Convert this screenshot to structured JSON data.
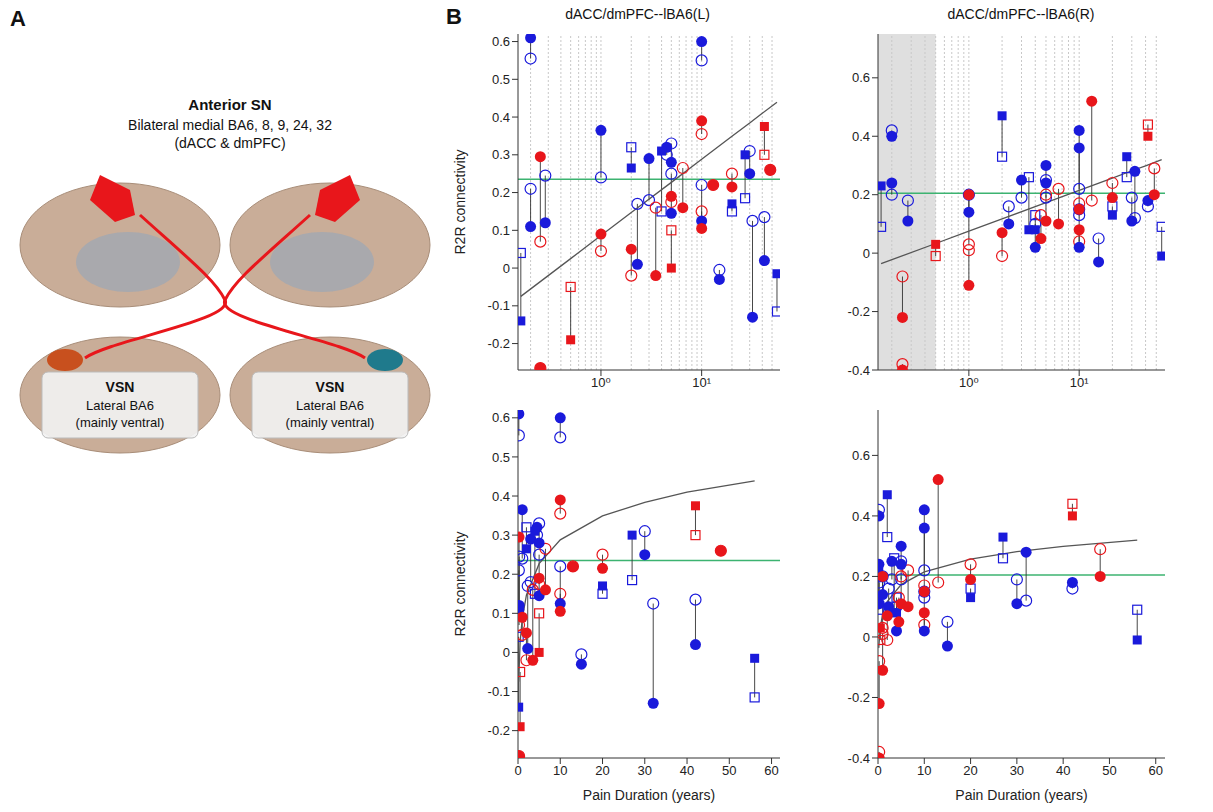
{
  "panel_labels": [
    "A",
    "B"
  ],
  "diagram": {
    "title": "Anterior SN",
    "subtitle": "Bilateral medial BA6, 8, 9, 24, 32",
    "subtitle2": "(dACC & dmPFC)",
    "boxes": [
      {
        "title": "VSN",
        "line1": "Lateral BA6",
        "line2": "(mainly ventral)",
        "color": "#c8501e"
      },
      {
        "title": "VSN",
        "line1": "Lateral BA6",
        "line2": "(mainly ventral)",
        "color": "#1f7a8c"
      }
    ]
  },
  "chart_data": [
    {
      "type": "scatter",
      "title": "dACC/dmPFC--lBA6(L)",
      "log": "x",
      "xlim": [
        0.15,
        60
      ],
      "xticks": [
        {
          "value": 1,
          "label": "10⁰"
        },
        {
          "value": 10,
          "label": "10¹"
        }
      ],
      "minor_xticks": [
        0.2,
        0.3,
        0.4,
        0.5,
        0.6,
        0.7,
        0.8,
        0.9,
        2,
        3,
        4,
        5,
        6,
        7,
        8,
        9,
        20,
        30,
        40,
        50
      ],
      "ylim": [
        -0.27,
        0.62
      ],
      "yticks": [
        -0.2,
        -0.1,
        0,
        0.1,
        0.2,
        0.3,
        0.4,
        0.5,
        0.6
      ],
      "grid": "x",
      "y_label": "R2R connectivity",
      "reference_value": 0.235,
      "reference_color": "#3cb371",
      "fit": {
        "color": "#555555",
        "x": [
          0.16,
          0.5,
          1,
          2,
          5,
          10,
          20,
          30,
          40,
          56
        ],
        "values": [
          -0.075,
          0.025,
          0.086,
          0.147,
          0.227,
          0.288,
          0.349,
          0.384,
          0.41,
          0.439
        ]
      },
      "series": [
        {
          "color": "#1a1adb",
          "marker": "circle",
          "x": [
            0.2,
            0.2,
            0.28,
            1,
            2.3,
            3,
            4.5,
            5,
            5,
            10,
            10,
            15,
            30,
            32,
            42
          ],
          "values": [
            0.61,
            0.11,
            0.12,
            0.365,
            0.01,
            0.29,
            0.32,
            0.28,
            0.145,
            0.6,
            0.125,
            -0.03,
            0.25,
            -0.13,
            0.02
          ],
          "values_open": [
            0.555,
            0.21,
            0.245,
            0.24,
            0.17,
            0.18,
            0.3,
            0.33,
            0.25,
            0.55,
            0.22,
            -0.005,
            0.31,
            0.125,
            0.135
          ]
        },
        {
          "color": "#1a1adb",
          "marker": "square",
          "x": [
            0.16,
            2,
            4,
            20,
            27,
            56
          ],
          "values": [
            -0.14,
            0.265,
            0.31,
            0.17,
            0.3,
            -0.015
          ],
          "values_open": [
            0.04,
            0.32,
            0.15,
            0.15,
            0.185,
            -0.115
          ]
        },
        {
          "color": "#e8161b",
          "marker": "circle",
          "x": [
            0.25,
            0.25,
            1,
            2,
            3.5,
            5,
            6.5,
            10,
            10,
            13,
            20,
            48
          ],
          "values": [
            0.295,
            -0.265,
            0.09,
            0.05,
            -0.02,
            0.19,
            0.16,
            0.39,
            0.105,
            0.22,
            0.215,
            0.26
          ],
          "values_open": [
            0.07,
            -0.265,
            0.045,
            -0.02,
            0.16,
            0.175,
            0.265,
            0.355,
            0.15,
            0.22,
            0.25,
            0.26
          ]
        },
        {
          "color": "#e8161b",
          "marker": "square",
          "x": [
            0.5,
            5,
            42
          ],
          "values": [
            -0.19,
            0.0,
            0.375
          ],
          "values_open": [
            -0.05,
            0.1,
            0.3
          ]
        }
      ]
    },
    {
      "type": "scatter",
      "title": "dACC/dmPFC--lBA6(R)",
      "log": "x",
      "xlim": [
        0.15,
        60
      ],
      "xticks": [
        {
          "value": 1,
          "label": "10⁰"
        },
        {
          "value": 10,
          "label": "10¹"
        }
      ],
      "minor_xticks": [
        0.2,
        0.3,
        0.4,
        0.5,
        0.6,
        0.7,
        0.8,
        0.9,
        2,
        3,
        4,
        5,
        6,
        7,
        8,
        9,
        20,
        30,
        40,
        50
      ],
      "shaded_x": [
        0.15,
        0.5
      ],
      "ylim": [
        -0.4,
        0.75
      ],
      "yticks": [
        -0.4,
        -0.2,
        0,
        0.2,
        0.4,
        0.6
      ],
      "grid": "x",
      "reference_value": 0.205,
      "reference_color": "#3cb371",
      "fit": {
        "color": "#555555",
        "x": [
          0.16,
          0.5,
          1,
          2,
          5,
          10,
          20,
          30,
          40,
          56
        ],
        "values": [
          -0.036,
          0.033,
          0.075,
          0.117,
          0.173,
          0.215,
          0.257,
          0.282,
          0.299,
          0.32
        ]
      },
      "series": [
        {
          "color": "#1a1adb",
          "marker": "circle",
          "x": [
            0.2,
            0.2,
            0.28,
            1,
            2.3,
            3,
            4,
            5,
            5,
            10,
            10,
            10,
            15,
            30,
            32,
            42
          ],
          "values": [
            0.4,
            0.24,
            0.11,
            0.14,
            0.1,
            0.25,
            0.02,
            0.3,
            0.24,
            0.42,
            0.36,
            0.02,
            -0.03,
            0.11,
            0.28,
            0.18
          ],
          "values_open": [
            0.42,
            0.2,
            0.18,
            0.2,
            0.16,
            0.19,
            0.1,
            0.25,
            0.19,
            0.22,
            0.13,
            0.15,
            0.05,
            0.19,
            0.12,
            0.16
          ]
        },
        {
          "color": "#1a1adb",
          "marker": "square",
          "x": [
            0.16,
            2,
            3.5,
            4,
            20,
            27,
            56
          ],
          "values": [
            0.23,
            0.47,
            0.08,
            0.08,
            0.13,
            0.33,
            -0.01
          ],
          "values_open": [
            0.09,
            0.33,
            0.26,
            0.13,
            0.16,
            0.26,
            0.09
          ]
        },
        {
          "color": "#e8161b",
          "marker": "circle",
          "x": [
            0.25,
            0.25,
            1,
            1,
            2,
            4.5,
            5,
            6.5,
            10,
            10,
            13,
            20,
            48
          ],
          "values": [
            -0.22,
            -0.4,
            0.2,
            -0.11,
            0.07,
            0.05,
            0.11,
            0.1,
            0.15,
            0.08,
            0.52,
            0.19,
            0.2
          ],
          "values_open": [
            -0.08,
            -0.38,
            0.03,
            0.01,
            -0.01,
            0.13,
            0.2,
            0.22,
            0.17,
            0.04,
            0.18,
            0.24,
            0.29
          ]
        },
        {
          "color": "#e8161b",
          "marker": "square",
          "x": [
            0.5,
            42
          ],
          "values": [
            0.03,
            0.4
          ],
          "values_open": [
            -0.01,
            0.44
          ]
        }
      ]
    },
    {
      "type": "scatter",
      "xlim": [
        0,
        62
      ],
      "xticks": [
        0,
        10,
        20,
        30,
        40,
        50,
        60
      ],
      "ylim": [
        -0.27,
        0.62
      ],
      "yticks": [
        -0.2,
        -0.1,
        0,
        0.1,
        0.2,
        0.3,
        0.4,
        0.5,
        0.6
      ],
      "grid": false,
      "x_label": "Pain Duration (years)",
      "y_label": "R2R connectivity",
      "reference_value": 0.235,
      "reference_color": "#3cb371",
      "fit": {
        "color": "#555555",
        "x": [
          0.16,
          0.5,
          1,
          2,
          5,
          10,
          20,
          30,
          40,
          56
        ],
        "values": [
          -0.075,
          0.025,
          0.086,
          0.147,
          0.227,
          0.288,
          0.349,
          0.384,
          0.41,
          0.439
        ]
      },
      "series": [
        {
          "color": "#1a1adb",
          "marker": "circle",
          "x": [
            0.2,
            0.2,
            0.28,
            1,
            2.3,
            3,
            4.5,
            5,
            5,
            10,
            10,
            15,
            30,
            32,
            42
          ],
          "values": [
            0.61,
            0.11,
            0.12,
            0.365,
            0.01,
            0.29,
            0.32,
            0.28,
            0.145,
            0.6,
            0.125,
            -0.03,
            0.25,
            -0.13,
            0.02
          ],
          "values_open": [
            0.555,
            0.21,
            0.245,
            0.24,
            0.17,
            0.18,
            0.3,
            0.33,
            0.25,
            0.55,
            0.22,
            -0.005,
            0.31,
            0.125,
            0.135
          ]
        },
        {
          "color": "#1a1adb",
          "marker": "square",
          "x": [
            0.16,
            2,
            4,
            20,
            27,
            56
          ],
          "values": [
            -0.14,
            0.265,
            0.31,
            0.17,
            0.3,
            -0.015
          ],
          "values_open": [
            0.04,
            0.32,
            0.15,
            0.15,
            0.185,
            -0.115
          ]
        },
        {
          "color": "#e8161b",
          "marker": "circle",
          "x": [
            0.25,
            0.25,
            1,
            2,
            3.5,
            5,
            6.5,
            10,
            10,
            13,
            20,
            48
          ],
          "values": [
            0.295,
            -0.265,
            0.09,
            0.05,
            -0.02,
            0.19,
            0.16,
            0.39,
            0.105,
            0.22,
            0.215,
            0.26
          ],
          "values_open": [
            0.07,
            -0.265,
            0.045,
            -0.02,
            0.16,
            0.175,
            0.265,
            0.355,
            0.15,
            0.22,
            0.25,
            0.26
          ]
        },
        {
          "color": "#e8161b",
          "marker": "square",
          "x": [
            0.5,
            5,
            42
          ],
          "values": [
            -0.19,
            0.0,
            0.375
          ],
          "values_open": [
            -0.05,
            0.1,
            0.3
          ]
        }
      ]
    },
    {
      "type": "scatter",
      "xlim": [
        0,
        62
      ],
      "xticks": [
        0,
        10,
        20,
        30,
        40,
        50,
        60
      ],
      "ylim": [
        -0.4,
        0.75
      ],
      "yticks": [
        -0.4,
        -0.2,
        0,
        0.2,
        0.4,
        0.6
      ],
      "grid": false,
      "x_label": "Pain Duration (years)",
      "reference_value": 0.205,
      "reference_color": "#3cb371",
      "fit": {
        "color": "#555555",
        "x": [
          0.16,
          0.5,
          1,
          2,
          5,
          10,
          20,
          30,
          40,
          56
        ],
        "values": [
          -0.036,
          0.033,
          0.075,
          0.117,
          0.173,
          0.215,
          0.257,
          0.282,
          0.299,
          0.32
        ]
      },
      "series": [
        {
          "color": "#1a1adb",
          "marker": "circle",
          "x": [
            0.2,
            0.2,
            0.28,
            1,
            2.3,
            3,
            4,
            5,
            5,
            10,
            10,
            10,
            15,
            30,
            32,
            42
          ],
          "values": [
            0.4,
            0.24,
            0.11,
            0.14,
            0.1,
            0.25,
            0.02,
            0.3,
            0.24,
            0.42,
            0.36,
            0.02,
            -0.03,
            0.11,
            0.28,
            0.18
          ],
          "values_open": [
            0.42,
            0.2,
            0.18,
            0.2,
            0.16,
            0.19,
            0.1,
            0.25,
            0.19,
            0.22,
            0.13,
            0.15,
            0.05,
            0.19,
            0.12,
            0.16
          ]
        },
        {
          "color": "#1a1adb",
          "marker": "square",
          "x": [
            0.16,
            2,
            3.5,
            4,
            20,
            27,
            56
          ],
          "values": [
            0.23,
            0.47,
            0.08,
            0.08,
            0.13,
            0.33,
            -0.01
          ],
          "values_open": [
            0.09,
            0.33,
            0.26,
            0.13,
            0.16,
            0.26,
            0.09
          ]
        },
        {
          "color": "#e8161b",
          "marker": "circle",
          "x": [
            0.25,
            0.25,
            1,
            1,
            2,
            4.5,
            5,
            6.5,
            10,
            10,
            13,
            20,
            48
          ],
          "values": [
            -0.22,
            -0.4,
            0.2,
            -0.11,
            0.07,
            0.05,
            0.11,
            0.1,
            0.15,
            0.08,
            0.52,
            0.19,
            0.2
          ],
          "values_open": [
            -0.08,
            -0.38,
            0.03,
            0.01,
            -0.01,
            0.13,
            0.2,
            0.22,
            0.17,
            0.04,
            0.18,
            0.24,
            0.29
          ]
        },
        {
          "color": "#e8161b",
          "marker": "square",
          "x": [
            0.5,
            42
          ],
          "values": [
            0.03,
            0.4
          ],
          "values_open": [
            -0.01,
            0.44
          ]
        }
      ]
    }
  ]
}
